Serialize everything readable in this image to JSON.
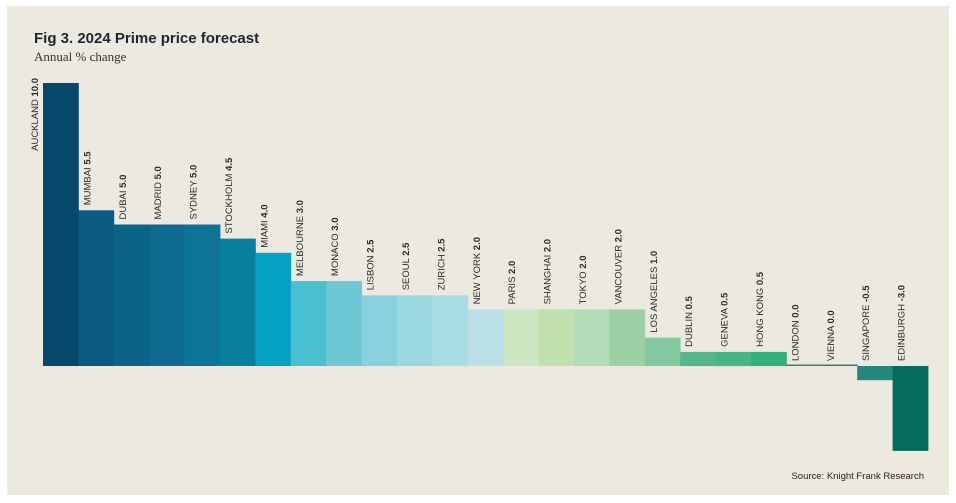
{
  "chart_data": {
    "type": "bar",
    "title": "Fig 3. 2024 Prime price forecast",
    "subtitle": "Annual % change",
    "source": "Source: Knight Frank Research",
    "ylim": [
      -3.0,
      10.0
    ],
    "grid": false,
    "categories": [
      "AUCKLAND",
      "MUMBAI",
      "DUBAI",
      "MADRID",
      "SYDNEY",
      "STOCKHOLM",
      "MIAMI",
      "MELBOURNE",
      "MONACO",
      "LISBON",
      "SEOUL",
      "ZURICH",
      "NEW YORK",
      "PARIS",
      "SHANGHAI",
      "TOKYO",
      "VANCOUVER",
      "LOS ANGELES",
      "DUBLIN",
      "GENEVA",
      "HONG KONG",
      "LONDON",
      "VIENNA",
      "SINGAPORE",
      "EDINBURGH"
    ],
    "values": [
      10.0,
      5.5,
      5.0,
      5.0,
      5.0,
      4.5,
      4.0,
      3.0,
      3.0,
      2.5,
      2.5,
      2.5,
      2.0,
      2.0,
      2.0,
      2.0,
      2.0,
      1.0,
      0.5,
      0.5,
      0.5,
      0.0,
      0.0,
      -0.5,
      -3.0
    ],
    "value_labels": [
      "10.0",
      "5.5",
      "5.0",
      "5.0",
      "5.0",
      "4.5",
      "4.0",
      "3.0",
      "3.0",
      "2.5",
      "2.5",
      "2.5",
      "2.0",
      "2.0",
      "2.0",
      "2.0",
      "2.0",
      "1.0",
      "0.5",
      "0.5",
      "0.5",
      "0.0",
      "0.0",
      "-0.5",
      "-3.0"
    ],
    "colors": [
      "#06486b",
      "#0a5a82",
      "#0b6488",
      "#0c6b8e",
      "#0d7496",
      "#087f9f",
      "#02a2c2",
      "#48c0d0",
      "#6cc8d4",
      "#88d2df",
      "#9ad8e2",
      "#a8dde6",
      "#badfe7",
      "#cde6c2",
      "#c0e0ad",
      "#b2dcb8",
      "#9bd1a4",
      "#84c8a0",
      "#56b78e",
      "#48b487",
      "#34b07c",
      "#2a8a78",
      "#288178",
      "#238779",
      "#066b5b"
    ]
  }
}
